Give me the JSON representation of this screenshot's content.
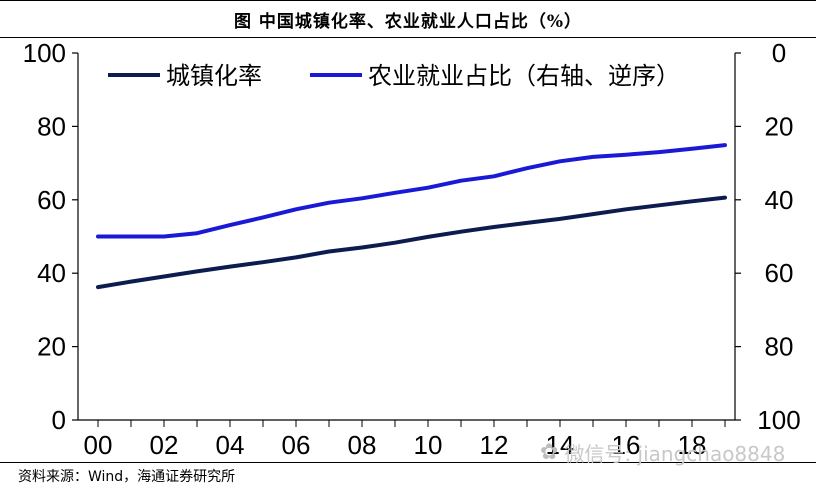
{
  "title": "图  中国城镇化率、农业就业人口占比（%）",
  "source": "资料来源：Wind，海通证券研究所",
  "watermark": {
    "text": "微信号: jiangchao8848",
    "icon": "wechat-icon"
  },
  "chart_data": {
    "type": "line",
    "x": [
      "00",
      "01",
      "02",
      "03",
      "04",
      "05",
      "06",
      "07",
      "08",
      "09",
      "10",
      "11",
      "12",
      "13",
      "14",
      "15",
      "16",
      "17",
      "18",
      "19"
    ],
    "xticks": [
      "00",
      "02",
      "04",
      "06",
      "08",
      "10",
      "12",
      "14",
      "16",
      "18"
    ],
    "left_axis": {
      "ylim": [
        0,
        100
      ],
      "ticks": [
        0,
        20,
        40,
        60,
        80,
        100
      ]
    },
    "right_axis": {
      "ylim": [
        0,
        100
      ],
      "inverted": true,
      "ticks": [
        0,
        20,
        40,
        60,
        80,
        100
      ]
    },
    "series": [
      {
        "name": "城镇化率",
        "axis": "left",
        "color": "#0c1c4f",
        "values": [
          36.2,
          37.7,
          39.1,
          40.5,
          41.8,
          43.0,
          44.3,
          45.9,
          47.0,
          48.3,
          49.9,
          51.3,
          52.6,
          53.7,
          54.8,
          56.1,
          57.4,
          58.5,
          59.6,
          60.6
        ]
      },
      {
        "name": "农业就业占比（右轴、逆序）",
        "axis": "right",
        "color": "#1a1ad6",
        "values": [
          50.0,
          50.0,
          50.0,
          49.1,
          46.9,
          44.8,
          42.6,
          40.8,
          39.6,
          38.1,
          36.7,
          34.8,
          33.6,
          31.4,
          29.5,
          28.3,
          27.7,
          27.0,
          26.1,
          25.1
        ]
      }
    ],
    "legend_position": "top",
    "grid": false
  }
}
